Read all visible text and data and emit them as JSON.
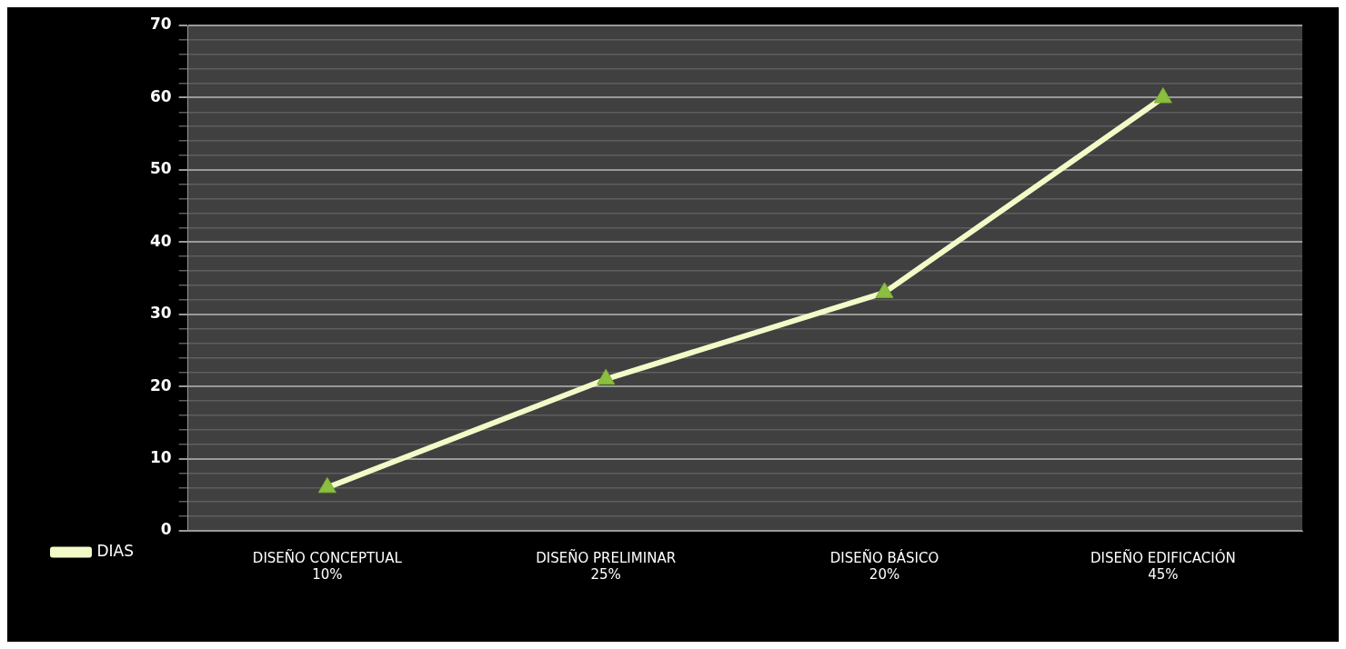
{
  "chart_data": {
    "type": "line",
    "categories": [
      "DISEÑO CONCEPTUAL\n10%",
      "DISEÑO PRELIMINAR\n25%",
      "DISEÑO BÁSICO\n20%",
      "DISEÑO EDIFICACIÓN\n45%"
    ],
    "series": [
      {
        "name": "DIAS",
        "color": "#f3fac8",
        "values": [
          6,
          21,
          33,
          60
        ]
      }
    ],
    "ylim": [
      0,
      70
    ],
    "yticks": [
      0,
      {
        "value": 2,
        "label": null
      },
      {
        "value": 4,
        "label": null
      },
      {
        "value": 6,
        "label": null
      },
      {
        "value": 8,
        "label": null
      },
      10,
      {
        "value": 12,
        "label": null
      },
      {
        "value": 14,
        "label": null
      },
      {
        "value": 16,
        "label": null
      },
      {
        "value": 18,
        "label": null
      },
      20,
      {
        "value": 22,
        "label": null
      },
      {
        "value": 24,
        "label": null
      },
      {
        "value": 26,
        "label": null
      },
      {
        "value": 28,
        "label": null
      },
      30,
      {
        "value": 32,
        "label": null
      },
      {
        "value": 34,
        "label": null
      },
      {
        "value": 36,
        "label": null
      },
      {
        "value": 38,
        "label": null
      },
      40,
      {
        "value": 42,
        "label": null
      },
      {
        "value": 44,
        "label": null
      },
      {
        "value": 46,
        "label": null
      },
      {
        "value": 48,
        "label": null
      },
      50,
      {
        "value": 52,
        "label": null
      },
      {
        "value": 54,
        "label": null
      },
      {
        "value": 56,
        "label": null
      },
      {
        "value": 58,
        "label": null
      },
      60,
      {
        "value": 62,
        "label": null
      },
      {
        "value": 64,
        "label": null
      },
      {
        "value": 66,
        "label": null
      },
      {
        "value": 68,
        "label": null
      },
      70
    ],
    "grid": "y",
    "legend": "bottom left",
    "marker": "triangle",
    "line_style": "solid"
  }
}
